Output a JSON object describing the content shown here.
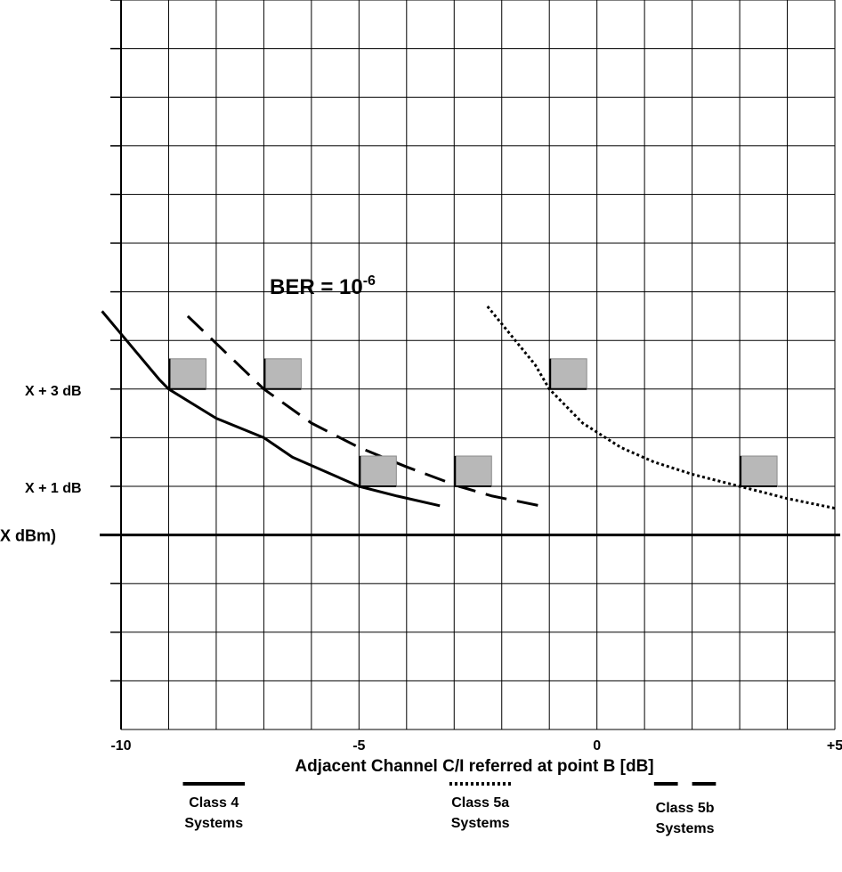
{
  "chart_data": {
    "type": "line",
    "title": "BER = 10",
    "title_exponent": "-6",
    "xlabel": "Adjacent Channel C/I referred at point B [dB]",
    "ylabel": "",
    "x_tick_labels": [
      {
        "x": -10,
        "label": "-10"
      },
      {
        "x": -5,
        "label": "-5"
      },
      {
        "x": 0,
        "label": "0"
      },
      {
        "x": 5,
        "label": "+5"
      }
    ],
    "y_tick_labels": [
      {
        "y": 3,
        "label": "X + 3 dB"
      },
      {
        "y": 1,
        "label": "X + 1 dB"
      },
      {
        "y": 0,
        "label": "X dBm)"
      }
    ],
    "xlim": [
      -10,
      5
    ],
    "ylim": [
      -4,
      11
    ],
    "grid": true,
    "series": [
      {
        "style": "solid",
        "points": [
          [
            -10.4,
            4.6
          ],
          [
            -9.2,
            3.2
          ],
          [
            -9.0,
            3.0
          ],
          [
            -8.0,
            2.4
          ],
          [
            -7.0,
            2.0
          ],
          [
            -6.4,
            1.6
          ],
          [
            -5.0,
            1.0
          ],
          [
            -4.2,
            0.8
          ],
          [
            -3.3,
            0.6
          ]
        ]
      },
      {
        "style": "dashed",
        "points": [
          [
            -8.6,
            4.5
          ],
          [
            -7.0,
            3.0
          ],
          [
            -6.0,
            2.3
          ],
          [
            -5.0,
            1.8
          ],
          [
            -4.0,
            1.4
          ],
          [
            -2.9,
            1.0
          ],
          [
            -2.2,
            0.8
          ],
          [
            -1.2,
            0.6
          ]
        ]
      },
      {
        "style": "dotted",
        "points": [
          [
            -2.3,
            4.7
          ],
          [
            -1.3,
            3.5
          ],
          [
            -1.0,
            3.0
          ],
          [
            -0.3,
            2.3
          ],
          [
            0.5,
            1.8
          ],
          [
            1.2,
            1.5
          ],
          [
            2.0,
            1.25
          ],
          [
            3.0,
            1.0
          ],
          [
            4.0,
            0.75
          ],
          [
            5.0,
            0.55
          ]
        ]
      }
    ],
    "markers": [
      {
        "x": -9.0,
        "y": 3.0
      },
      {
        "x": -7.0,
        "y": 3.0
      },
      {
        "x": -5.0,
        "y": 1.0
      },
      {
        "x": -3.0,
        "y": 1.0
      },
      {
        "x": -1.0,
        "y": 3.0
      },
      {
        "x": 3.0,
        "y": 1.0
      }
    ],
    "legend": [
      {
        "style": "solid",
        "line1": "Class 4",
        "line2": "Systems",
        "segments": [
          [
            -8.7,
            -7.4
          ]
        ]
      },
      {
        "style": "dotted",
        "line1": "Class 5a",
        "line2": "Systems",
        "segments": [
          [
            -3.1,
            -1.8
          ]
        ]
      },
      {
        "style": "dashed",
        "line1": "Class 5b",
        "line2": "Systems",
        "segments": [
          [
            1.2,
            1.7
          ],
          [
            2.0,
            2.5
          ]
        ]
      }
    ]
  }
}
